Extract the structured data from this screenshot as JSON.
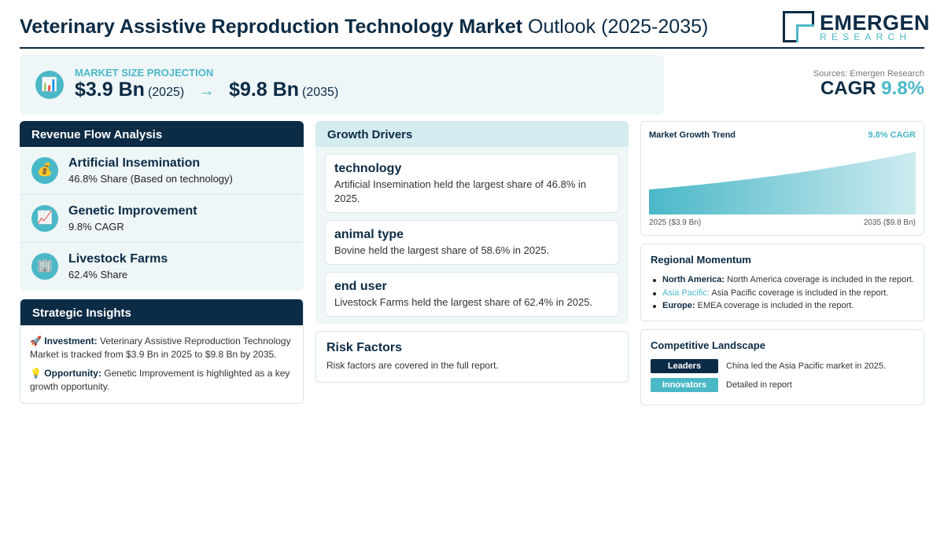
{
  "header": {
    "title_bold": "Veterinary Assistive Reproduction Technology Market",
    "title_light": "Outlook (2025-2035)",
    "logo_name": "EMERGEN",
    "logo_sub": "RESEARCH"
  },
  "hero": {
    "icon": "bar-chart-icon",
    "label": "MARKET SIZE PROJECTION",
    "start_value": "$3.9 Bn",
    "start_year": "(2025)",
    "arrow": "→",
    "end_value": "$9.8 Bn",
    "end_year": "(2035)"
  },
  "summary": {
    "sources": "Sources: Emergen Research",
    "cagr_label": "CAGR",
    "cagr_value": "9.8%"
  },
  "revenue": {
    "title": "Revenue Flow Analysis",
    "items": [
      {
        "icon": "money-bag-icon",
        "glyph": "💰",
        "name": "Artificial Insemination",
        "sub": "46.8% Share (Based on technology)"
      },
      {
        "icon": "chart-up-icon",
        "glyph": "📈",
        "name": "Genetic Improvement",
        "sub": "9.8% CAGR"
      },
      {
        "icon": "building-icon",
        "glyph": "🏢",
        "name": "Livestock Farms",
        "sub": "62.4% Share"
      }
    ]
  },
  "insights": {
    "title": "Strategic Insights",
    "investment_glyph": "🚀",
    "investment_label": "Investment:",
    "investment_text": "Veterinary Assistive Reproduction Technology Market is tracked from $3.9 Bn in 2025 to $9.8 Bn by 2035.",
    "opportunity_glyph": "💡",
    "opportunity_label": "Opportunity:",
    "opportunity_text": "Genetic Improvement is highlighted as a key growth opportunity."
  },
  "drivers": {
    "title": "Growth Drivers",
    "items": [
      {
        "name": "technology",
        "text": "Artificial Insemination held the largest share of 46.8% in 2025."
      },
      {
        "name": "animal type",
        "text": "Bovine held the largest share of 58.6% in 2025."
      },
      {
        "name": "end user",
        "text": "Livestock Farms held the largest share of 62.4% in 2025."
      }
    ]
  },
  "risk": {
    "title": "Risk Factors",
    "text": "Risk factors are covered in the full report."
  },
  "trend": {
    "title": "Market Growth Trend",
    "cagr": "9.8% CAGR",
    "start_label": "2025 ($3.9 Bn)",
    "end_label": "2035 ($9.8 Bn)"
  },
  "chart_data": {
    "type": "area",
    "x": [
      2025,
      2035
    ],
    "values": [
      3.9,
      9.8
    ],
    "title": "Market Growth Trend"
  },
  "regional": {
    "title": "Regional Momentum",
    "items": [
      {
        "name": "North America:",
        "text": "North America coverage is included in the report."
      },
      {
        "name": "Asia Pacific:",
        "text": "Asia Pacific coverage is included in the report."
      },
      {
        "name": "Europe:",
        "text": "EMEA coverage is included in the report."
      }
    ]
  },
  "competitive": {
    "title": "Competitive Landscape",
    "rows": [
      {
        "badge": "Leaders",
        "color": "#0c2b45",
        "text": "China led the Asia Pacific market in 2025."
      },
      {
        "badge": "Innovators",
        "color": "#4bb8c8",
        "text": "Detailed in report"
      }
    ]
  },
  "colors": {
    "navy": "#0c2b45",
    "accent": "#4bb8c8",
    "panel": "#eef6f8"
  }
}
